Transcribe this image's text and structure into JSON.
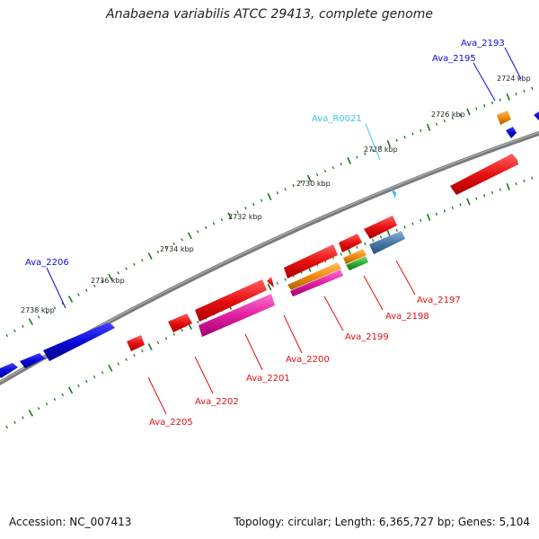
{
  "title": "Anabaena variabilis ATCC 29413, complete genome",
  "footer": {
    "accession": "Accession: NC_007413",
    "summary": "Topology: circular; Length: 6,365,727 bp; Genes: 5,104"
  },
  "colors": {
    "backbone": "#808080",
    "tick": "#1a7a1a",
    "forward_gene": "#0a0ad8",
    "reverse_gene": "#e01010",
    "rna": "#3bc3e8",
    "pink": "#e020a0",
    "orange": "#f08a10",
    "green": "#30b030",
    "steel": "#4a7aa8"
  },
  "scale": {
    "labels": [
      {
        "text": "2724 kbp",
        "kbp": 2724
      },
      {
        "text": "2726 kbp",
        "kbp": 2726
      },
      {
        "text": "2728 kbp",
        "kbp": 2728
      },
      {
        "text": "2730 kbp",
        "kbp": 2730
      },
      {
        "text": "2732 kbp",
        "kbp": 2732
      },
      {
        "text": "2734 kbp",
        "kbp": 2734
      },
      {
        "text": "2736 kbp",
        "kbp": 2736
      },
      {
        "text": "2738 kbp",
        "kbp": 2738
      }
    ]
  },
  "genes": [
    {
      "id": "Ava_2193",
      "color_key": "forward_gene",
      "strand": "+"
    },
    {
      "id": "Ava_2195",
      "color_key": "forward_gene",
      "strand": "+"
    },
    {
      "id": "Ava_R0021",
      "color_key": "rna",
      "strand": "-"
    },
    {
      "id": "Ava_2197",
      "color_key": "reverse_gene",
      "strand": "-"
    },
    {
      "id": "Ava_2198",
      "color_key": "reverse_gene",
      "strand": "-"
    },
    {
      "id": "Ava_2199",
      "color_key": "reverse_gene",
      "strand": "-"
    },
    {
      "id": "Ava_2200",
      "color_key": "reverse_gene",
      "strand": "-"
    },
    {
      "id": "Ava_2201",
      "color_key": "reverse_gene",
      "strand": "-"
    },
    {
      "id": "Ava_2202",
      "color_key": "reverse_gene",
      "strand": "-"
    },
    {
      "id": "Ava_2205",
      "color_key": "reverse_gene",
      "strand": "-"
    },
    {
      "id": "Ava_2206",
      "color_key": "forward_gene",
      "strand": "+"
    }
  ]
}
